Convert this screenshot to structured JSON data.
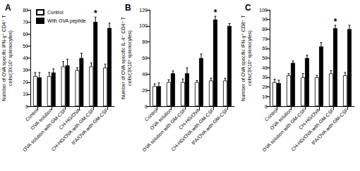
{
  "chart_data": [
    {
      "type": "bar",
      "title": "A",
      "ylabel": "Number of OVA specific IFN-γ⁺ CD4⁺ T cells/(3X10⁵ splenocytes)",
      "categories": [
        "Control",
        "OVA solution",
        "OVA solution with GM-CSF",
        "CH-HG/OVA",
        "CH-HG/OVA with GM-CSF",
        "IFA/OVA with GM-CSF"
      ],
      "series": [
        {
          "name": "Control",
          "color": "#ffffff",
          "values": [
            25,
            25,
            33,
            30,
            33,
            32
          ],
          "errors": [
            3,
            3,
            4,
            2,
            3,
            3
          ]
        },
        {
          "name": "With OVA peptide",
          "color": "#000000",
          "values": [
            24,
            28,
            34,
            40,
            70,
            65
          ],
          "errors": [
            4,
            3,
            5,
            4,
            4,
            4
          ]
        }
      ],
      "annotations": [
        {
          "text": "*",
          "category": "CH-HG/OVA with GM-CSF",
          "series": "With OVA peptide"
        }
      ],
      "ylim": [
        0,
        80
      ],
      "yticks": [
        0,
        10,
        20,
        30,
        40,
        50,
        60,
        70,
        80
      ],
      "legend": "upper left",
      "grid": false
    },
    {
      "type": "bar",
      "title": "B",
      "ylabel": "Number of OVA specific IL-4⁺ CD4⁺ T cells/(3X10⁵ splenocytes)",
      "categories": [
        "Control",
        "OVA solution",
        "OVA solution with GM-CSF",
        "CH-HG/OVA",
        "CH-HG/OVA with GM-CSF",
        "IFA/OVA with GM-CSF"
      ],
      "series": [
        {
          "name": "Control",
          "color": "#ffffff",
          "values": [
            25,
            30,
            30,
            30,
            32,
            32
          ],
          "errors": [
            3,
            3,
            4,
            2,
            3,
            3
          ]
        },
        {
          "name": "With OVA peptide",
          "color": "#000000",
          "values": [
            25,
            41,
            41,
            60,
            108,
            100
          ],
          "errors": [
            4,
            3,
            7,
            5,
            4,
            3
          ]
        }
      ],
      "annotations": [
        {
          "text": "*",
          "category": "CH-HG/OVA with GM-CSF",
          "series": "With OVA peptide"
        }
      ],
      "ylim": [
        0,
        120
      ],
      "yticks": [
        0,
        20,
        40,
        60,
        80,
        100,
        120
      ],
      "grid": false
    },
    {
      "type": "bar",
      "title": "C",
      "ylabel": "Number of OVA specific IFN-γ⁺ CD8⁺ T cells/(3X10⁵ splenocytes)",
      "categories": [
        "Control",
        "OVA solution",
        "OVA solution with GM-CSF",
        "CH-HG/OVA",
        "CH-HG/OVA with GM-CSF",
        "IFA/OVA with GM-CSF"
      ],
      "series": [
        {
          "name": "Control",
          "color": "#ffffff",
          "values": [
            25,
            32,
            30,
            30,
            34,
            32
          ],
          "errors": [
            3,
            2,
            4,
            2,
            3,
            3
          ]
        },
        {
          "name": "With OVA peptide",
          "color": "#000000",
          "values": [
            24,
            45,
            50,
            62,
            81,
            80
          ],
          "errors": [
            3,
            2,
            3,
            4,
            3,
            4
          ]
        }
      ],
      "annotations": [
        {
          "text": "*",
          "category": "CH-HG/OVA with GM-CSF",
          "series": "With OVA peptide"
        }
      ],
      "ylim": [
        0,
        100
      ],
      "yticks": [
        0,
        10,
        20,
        30,
        40,
        50,
        60,
        70,
        80,
        90,
        100
      ],
      "grid": false
    }
  ]
}
